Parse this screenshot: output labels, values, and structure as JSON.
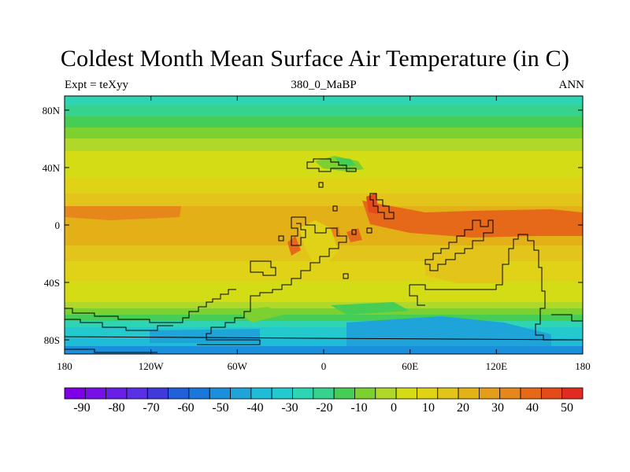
{
  "title": "Coldest Month Mean Surface Air Temperature (in C)",
  "subtitle_left": "Expt = teXyy",
  "subtitle_center": "380_0_MaBP",
  "subtitle_right": "ANN",
  "x_ticks": [
    "180",
    "120W",
    "60W",
    "0",
    "60E",
    "120E",
    "180"
  ],
  "y_ticks": [
    "80N",
    "40N",
    "0",
    "40S",
    "80S"
  ],
  "colorbar_labels": [
    "-90",
    "-80",
    "-70",
    "-60",
    "-50",
    "-40",
    "-30",
    "-20",
    "-10",
    "0",
    "10",
    "20",
    "30",
    "40",
    "50"
  ],
  "palette": [
    "#7f00e6",
    "#7510e6",
    "#6a1fe6",
    "#5a30e6",
    "#3f3ad9",
    "#2060d9",
    "#1a78dc",
    "#1a8fdc",
    "#1fa4d9",
    "#1fbcd8",
    "#23c9cc",
    "#2fd4b3",
    "#37d28e",
    "#45cd55",
    "#7cd030",
    "#b0d82a",
    "#d4dc16",
    "#e0d216",
    "#e2c41a",
    "#e2b216",
    "#e49e19",
    "#e6861b",
    "#e6691a",
    "#e34b1a",
    "#e22b20"
  ],
  "legend_ticks_mode": "between-boxes"
}
